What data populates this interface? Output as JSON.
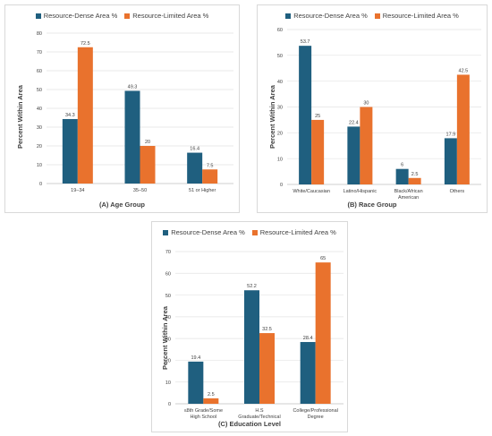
{
  "colors": {
    "dense": "#1f5f7f",
    "limited": "#e9722d",
    "grid": "#e3e3e3",
    "axis": "#bfbfbf"
  },
  "chart_data": [
    {
      "type": "bar",
      "id": "a",
      "xlabel": "(A) Age Group",
      "ylabel": "Percent Within Area",
      "ylim": [
        0,
        80
      ],
      "yticks": [
        0,
        10,
        20,
        30,
        40,
        50,
        60,
        70,
        80
      ],
      "grid": true,
      "legend_placement": "top-center",
      "categories": [
        [
          "19–34"
        ],
        [
          "35–50"
        ],
        [
          "51 or Higher"
        ]
      ],
      "series": [
        {
          "name": "Resource-Dense Area %",
          "values": [
            34.3,
            49.3,
            16.4
          ]
        },
        {
          "name": "Resource-Limited Area %",
          "values": [
            72.5,
            20,
            7.5
          ]
        }
      ]
    },
    {
      "type": "bar",
      "id": "b",
      "xlabel": "(B) Race Group",
      "ylabel": "Percent Within Area",
      "ylim": [
        0,
        60
      ],
      "yticks": [
        0,
        10,
        20,
        30,
        40,
        50,
        60
      ],
      "grid": true,
      "legend_placement": "top-center",
      "categories": [
        [
          "White/Caucasian"
        ],
        [
          "Latino/Hispanic"
        ],
        [
          "Black/African",
          "American"
        ],
        [
          "Others"
        ]
      ],
      "series": [
        {
          "name": "Resource-Dense Area %",
          "values": [
            53.7,
            22.4,
            6,
            17.9
          ]
        },
        {
          "name": "Resource-Limited Area %",
          "values": [
            25,
            30,
            2.5,
            42.5
          ]
        }
      ]
    },
    {
      "type": "bar",
      "id": "c",
      "xlabel": "(C) Education Level",
      "ylabel": "Percent Within Area",
      "ylim": [
        0,
        70
      ],
      "yticks": [
        0,
        10,
        20,
        30,
        40,
        50,
        60,
        70
      ],
      "grid": true,
      "legend_placement": "top-center",
      "categories": [
        [
          "≤8th Grade/Some",
          "High School"
        ],
        [
          "H.S",
          "Graduate/Technical"
        ],
        [
          "College/Professional",
          "Degree"
        ]
      ],
      "series": [
        {
          "name": "Resource-Dense Area %",
          "values": [
            19.4,
            52.2,
            28.4
          ]
        },
        {
          "name": "Resource-Limited Area %",
          "values": [
            2.5,
            32.5,
            65
          ]
        }
      ]
    }
  ]
}
